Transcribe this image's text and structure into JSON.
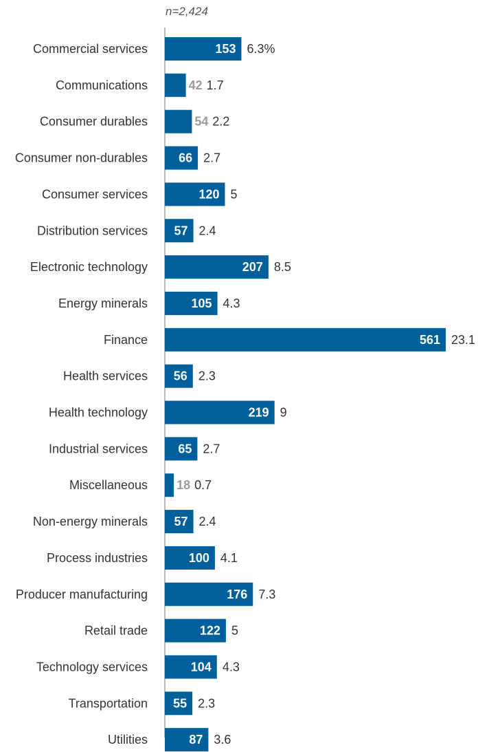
{
  "chart_data": {
    "type": "bar",
    "orientation": "horizontal",
    "note": "n=2,424",
    "categories": [
      "Commercial services",
      "Communications",
      "Consumer durables",
      "Consumer non-durables",
      "Consumer services",
      "Distribution services",
      "Electronic technology",
      "Energy minerals",
      "Finance",
      "Health services",
      "Health technology",
      "Industrial services",
      "Miscellaneous",
      "Non-energy minerals",
      "Process industries",
      "Producer manufacturing",
      "Retail trade",
      "Technology services",
      "Transportation",
      "Utilities"
    ],
    "series": [
      {
        "values": [
          153,
          42,
          54,
          66,
          120,
          57,
          207,
          105,
          561,
          56,
          219,
          65,
          18,
          57,
          100,
          176,
          122,
          104,
          55,
          87
        ]
      }
    ],
    "percent_labels": [
      "6.3%",
      "1.7",
      "2.2",
      "2.7",
      "5",
      "2.4",
      "8.5",
      "4.3",
      "23.1",
      "2.3",
      "9",
      "2.7",
      "0.7",
      "2.4",
      "4.1",
      "7.3",
      "5",
      "4.3",
      "2.3",
      "3.6"
    ],
    "title": "",
    "xlabel": "",
    "ylabel": "",
    "xlim": [
      0,
      561
    ],
    "grid": false,
    "legend": "none",
    "colors": {
      "bar": "#00609c",
      "axis": "#8c8c8c",
      "label": "#333333",
      "muted_label": "#9a9a9a"
    }
  }
}
